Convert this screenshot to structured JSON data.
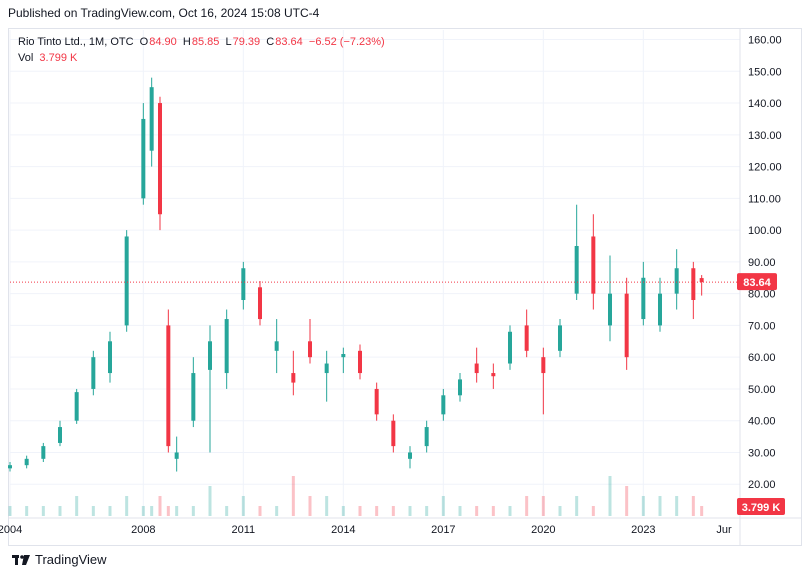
{
  "header": {
    "published": "Published on TradingView.com, Oct 16, 2024 15:08 UTC-4"
  },
  "legend": {
    "symbol": "Rio Tinto Ltd., 1M, OTC",
    "o_label": "O",
    "o_value": "84.90",
    "h_label": "H",
    "h_value": "85.85",
    "l_label": "L",
    "l_value": "79.39",
    "c_label": "C",
    "c_value": "83.64",
    "change": "−6.52 (−7.23%)",
    "vol_label": "Vol",
    "vol_value": "3.799 K"
  },
  "footer": {
    "brand": "TradingView"
  },
  "colors": {
    "up": "#26a69a",
    "down": "#f23645",
    "last": "#f23645",
    "grid": "#f0f3fa"
  },
  "chart_data": {
    "type": "candlestick",
    "y_ticks": [
      "160.00",
      "150.00",
      "140.00",
      "130.00",
      "120.00",
      "110.00",
      "100.00",
      "90.00",
      "80.00",
      "70.00",
      "60.00",
      "50.00",
      "40.00",
      "30.00",
      "20.00"
    ],
    "ylim": [
      10,
      163
    ],
    "x_ticks": [
      "2004",
      "2008",
      "2011",
      "2014",
      "2017",
      "2020",
      "2023",
      "Jur"
    ],
    "x_tick_years": [
      2004,
      2008,
      2011,
      2014,
      2017,
      2020,
      2023,
      2025.42
    ],
    "xlim": [
      2004,
      2025.9
    ],
    "last_price": 83.64,
    "last_price_label": "83.64",
    "last_volume_label": "3.799 K",
    "series": [
      {
        "t": 2004.0,
        "o": 25,
        "h": 27,
        "l": 24,
        "c": 26
      },
      {
        "t": 2004.5,
        "o": 26,
        "h": 29,
        "l": 25,
        "c": 28
      },
      {
        "t": 2005.0,
        "o": 28,
        "h": 33,
        "l": 27,
        "c": 32
      },
      {
        "t": 2005.5,
        "o": 33,
        "h": 40,
        "l": 32,
        "c": 38
      },
      {
        "t": 2006.0,
        "o": 40,
        "h": 50,
        "l": 39,
        "c": 49
      },
      {
        "t": 2006.5,
        "o": 50,
        "h": 62,
        "l": 48,
        "c": 60
      },
      {
        "t": 2007.0,
        "o": 55,
        "h": 68,
        "l": 52,
        "c": 65
      },
      {
        "t": 2007.5,
        "o": 70,
        "h": 100,
        "l": 68,
        "c": 98
      },
      {
        "t": 2008.0,
        "o": 110,
        "h": 140,
        "l": 108,
        "c": 135
      },
      {
        "t": 2008.25,
        "o": 125,
        "h": 148,
        "l": 120,
        "c": 145
      },
      {
        "t": 2008.5,
        "o": 140,
        "h": 142,
        "l": 100,
        "c": 105
      },
      {
        "t": 2008.75,
        "o": 70,
        "h": 75,
        "l": 30,
        "c": 32
      },
      {
        "t": 2009.0,
        "o": 28,
        "h": 35,
        "l": 24,
        "c": 30
      },
      {
        "t": 2009.5,
        "o": 40,
        "h": 60,
        "l": 38,
        "c": 55
      },
      {
        "t": 2010.0,
        "o": 56,
        "h": 70,
        "l": 30,
        "c": 65
      },
      {
        "t": 2010.5,
        "o": 55,
        "h": 75,
        "l": 50,
        "c": 72
      },
      {
        "t": 2011.0,
        "o": 78,
        "h": 90,
        "l": 75,
        "c": 88
      },
      {
        "t": 2011.5,
        "o": 82,
        "h": 84,
        "l": 70,
        "c": 72
      },
      {
        "t": 2012.0,
        "o": 62,
        "h": 72,
        "l": 55,
        "c": 65
      },
      {
        "t": 2012.5,
        "o": 55,
        "h": 62,
        "l": 48,
        "c": 52
      },
      {
        "t": 2013.0,
        "o": 65,
        "h": 72,
        "l": 58,
        "c": 60
      },
      {
        "t": 2013.5,
        "o": 55,
        "h": 62,
        "l": 46,
        "c": 58
      },
      {
        "t": 2014.0,
        "o": 60,
        "h": 63,
        "l": 55,
        "c": 61
      },
      {
        "t": 2014.5,
        "o": 62,
        "h": 64,
        "l": 53,
        "c": 55
      },
      {
        "t": 2015.0,
        "o": 50,
        "h": 52,
        "l": 40,
        "c": 42
      },
      {
        "t": 2015.5,
        "o": 40,
        "h": 42,
        "l": 30,
        "c": 32
      },
      {
        "t": 2016.0,
        "o": 28,
        "h": 32,
        "l": 25,
        "c": 30
      },
      {
        "t": 2016.5,
        "o": 32,
        "h": 40,
        "l": 30,
        "c": 38
      },
      {
        "t": 2017.0,
        "o": 42,
        "h": 50,
        "l": 40,
        "c": 48
      },
      {
        "t": 2017.5,
        "o": 48,
        "h": 55,
        "l": 46,
        "c": 53
      },
      {
        "t": 2018.0,
        "o": 58,
        "h": 63,
        "l": 52,
        "c": 55
      },
      {
        "t": 2018.5,
        "o": 55,
        "h": 58,
        "l": 50,
        "c": 54
      },
      {
        "t": 2019.0,
        "o": 58,
        "h": 70,
        "l": 56,
        "c": 68
      },
      {
        "t": 2019.5,
        "o": 70,
        "h": 75,
        "l": 60,
        "c": 62
      },
      {
        "t": 2020.0,
        "o": 60,
        "h": 63,
        "l": 42,
        "c": 55
      },
      {
        "t": 2020.5,
        "o": 62,
        "h": 72,
        "l": 60,
        "c": 70
      },
      {
        "t": 2021.0,
        "o": 80,
        "h": 108,
        "l": 78,
        "c": 95
      },
      {
        "t": 2021.5,
        "o": 98,
        "h": 105,
        "l": 75,
        "c": 80
      },
      {
        "t": 2022.0,
        "o": 70,
        "h": 92,
        "l": 65,
        "c": 80
      },
      {
        "t": 2022.5,
        "o": 80,
        "h": 85,
        "l": 56,
        "c": 60
      },
      {
        "t": 2023.0,
        "o": 72,
        "h": 90,
        "l": 70,
        "c": 85
      },
      {
        "t": 2023.5,
        "o": 70,
        "h": 85,
        "l": 68,
        "c": 80
      },
      {
        "t": 2024.0,
        "o": 80,
        "h": 94,
        "l": 75,
        "c": 88
      },
      {
        "t": 2024.5,
        "o": 88,
        "h": 90,
        "l": 72,
        "c": 78
      },
      {
        "t": 2024.75,
        "o": 84.9,
        "h": 85.85,
        "l": 79.39,
        "c": 83.64
      }
    ],
    "volume": [
      1,
      1,
      1,
      1,
      2,
      1,
      1,
      2,
      1,
      1,
      2,
      1,
      1,
      1,
      3,
      1,
      2,
      1,
      1,
      4,
      2,
      2,
      1,
      1,
      1,
      1,
      1,
      1,
      2,
      1,
      1,
      1,
      1,
      2,
      2,
      1,
      2,
      1,
      4,
      3,
      2,
      2,
      2,
      2,
      1
    ]
  }
}
